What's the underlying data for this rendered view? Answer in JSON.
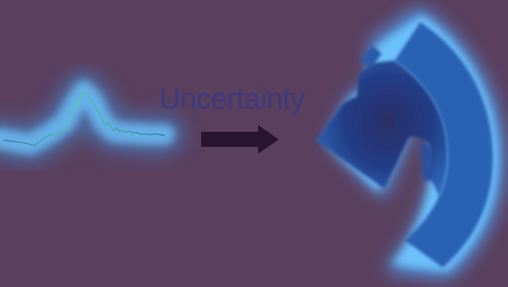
{
  "caption": {
    "label": "Uncertainty"
  },
  "colors": {
    "background": "#5a3f5e",
    "glow": "#58b4ff",
    "signal_line": "#3ea89a",
    "arrow": "#2a1530",
    "shape_dark": "#213e8c",
    "shape_mid": "#2d63b4",
    "caption_text": "#3b3a82"
  },
  "elements": {
    "signal": "glowing-waveform",
    "arrow": "right-arrow",
    "target": "glowing-curved-shape"
  }
}
